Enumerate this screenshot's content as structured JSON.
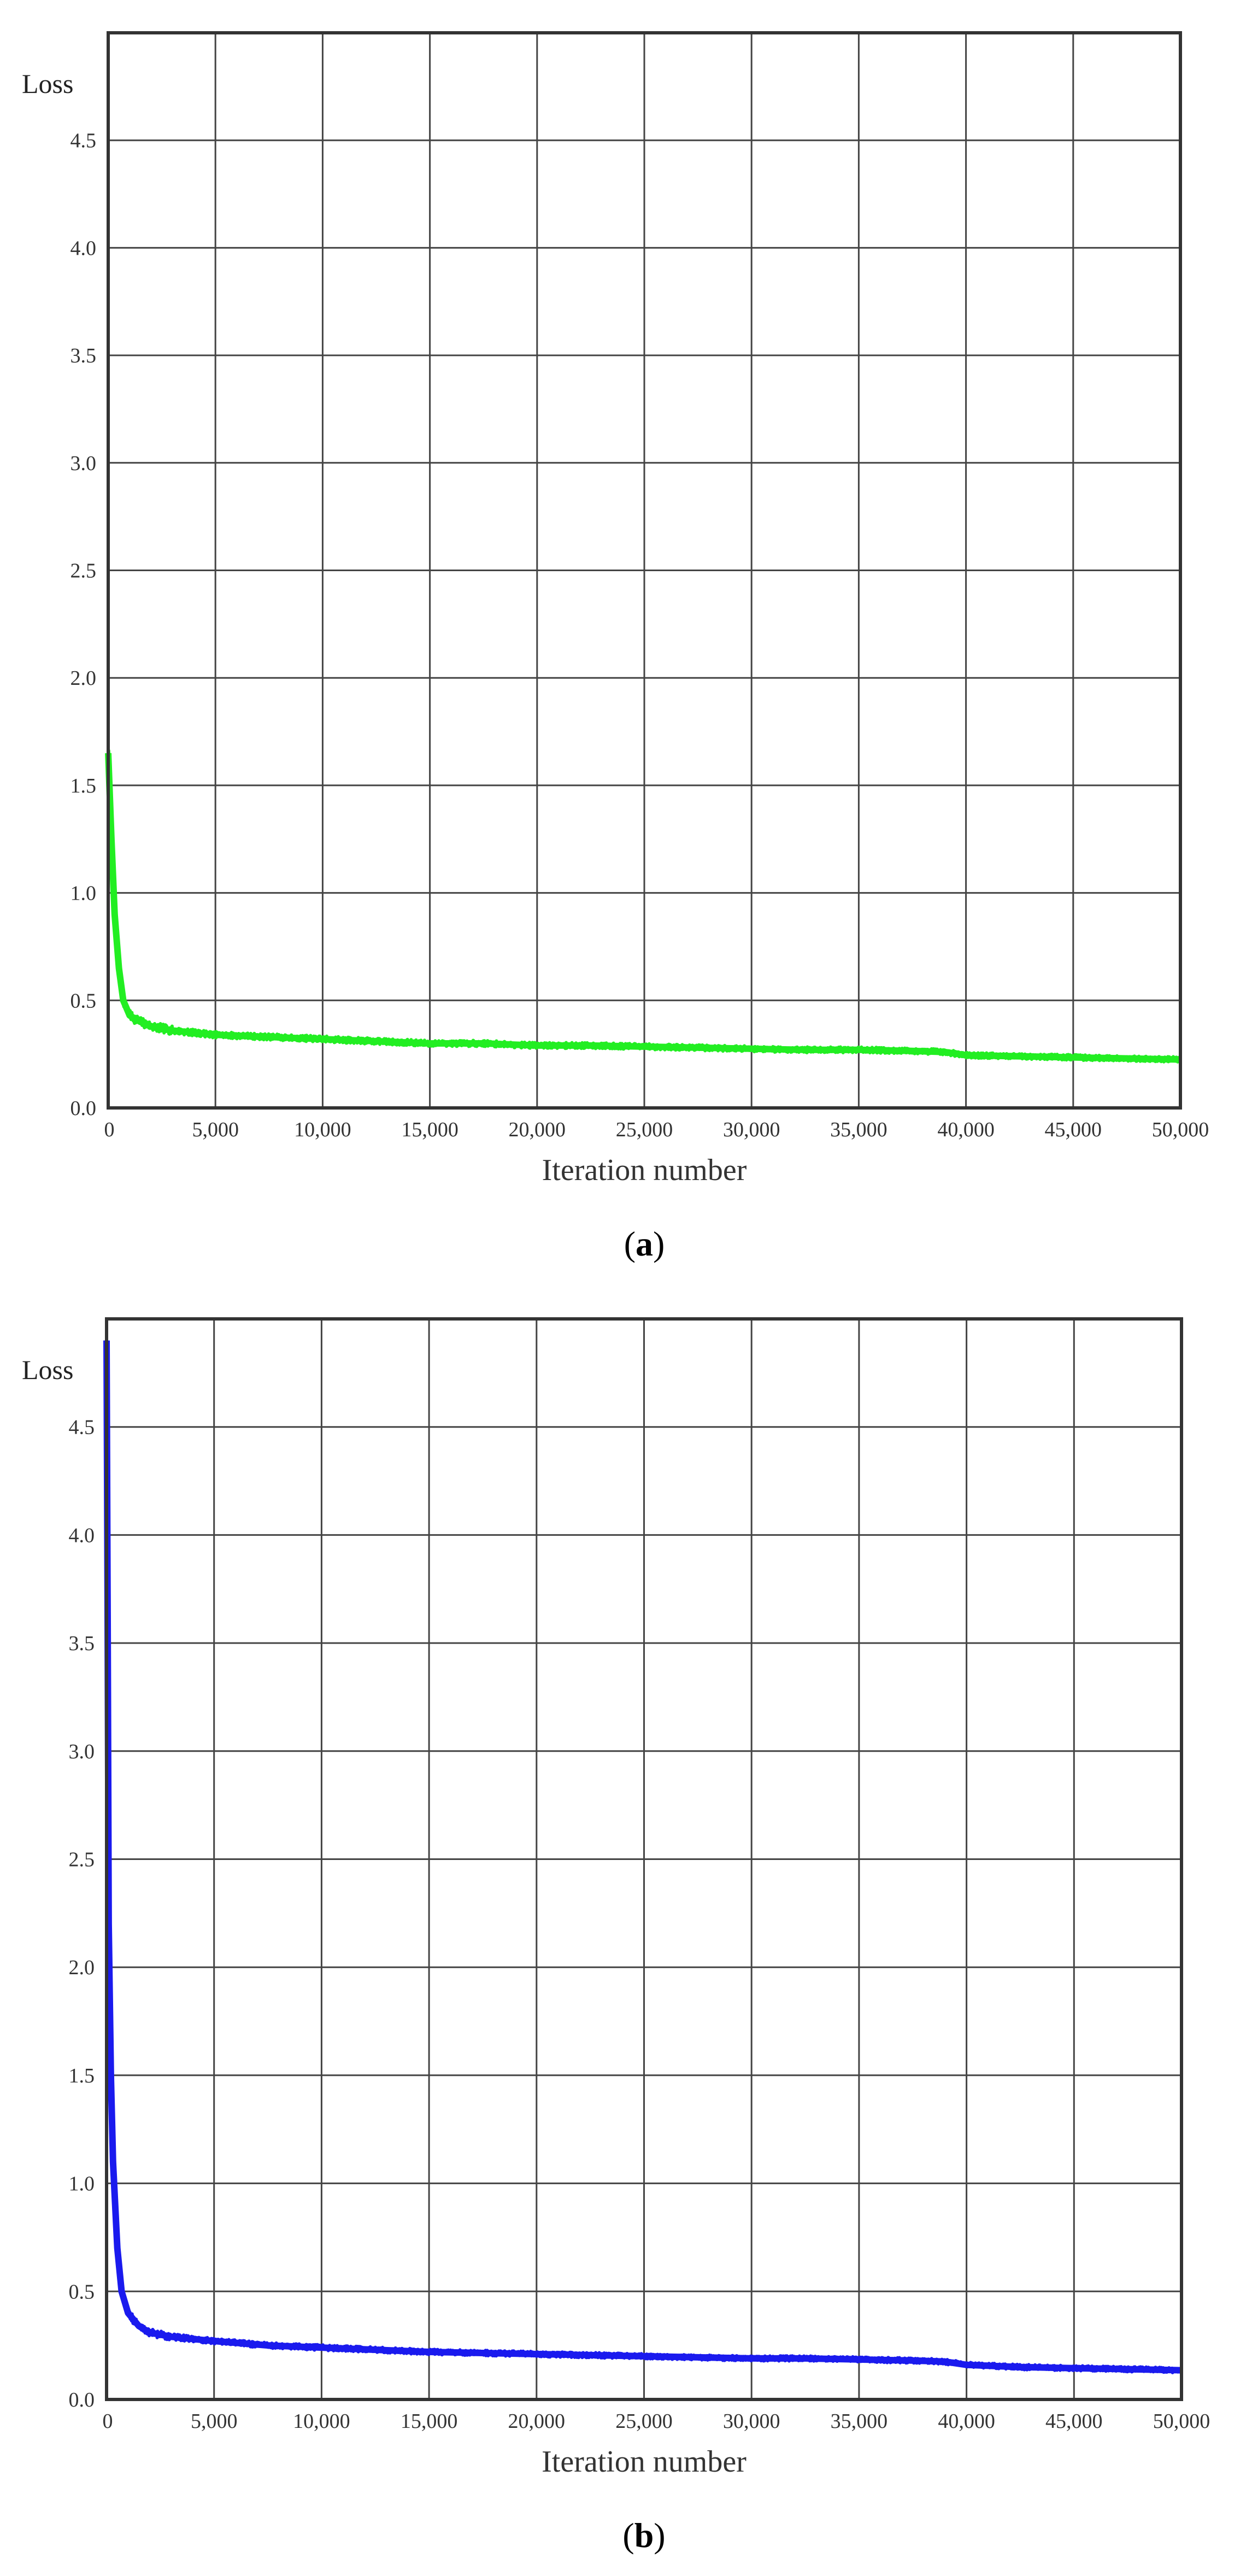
{
  "chart_data": [
    {
      "type": "line",
      "panel": "a",
      "caption_letter": "a",
      "ylabel": "Loss",
      "xlabel": "Iteration number",
      "xlim": [
        0,
        50000
      ],
      "ylim": [
        0,
        5
      ],
      "x_ticks": [
        0,
        5000,
        10000,
        15000,
        20000,
        25000,
        30000,
        35000,
        40000,
        45000,
        50000
      ],
      "x_tick_labels": [
        "0",
        "5,000",
        "10,000",
        "15,000",
        "20,000",
        "25,000",
        "30,000",
        "35,000",
        "40,000",
        "45,000",
        "50,000"
      ],
      "y_ticks": [
        0,
        0.5,
        1,
        1.5,
        2,
        2.5,
        3,
        3.5,
        4,
        4.5
      ],
      "y_tick_labels": [
        "0.0",
        "0.5",
        "1.0",
        "1.5",
        "2.0",
        "2.5",
        "3.0",
        "3.5",
        "4.0",
        "4.5"
      ],
      "grid": true,
      "color": "#22ee22",
      "series": [
        {
          "x": [
            0,
            150,
            300,
            500,
            700,
            1000,
            1500,
            2000,
            2500,
            3000,
            4000,
            5000,
            7500,
            10000,
            12500,
            15000,
            17500,
            20000,
            22500,
            25000,
            27500,
            30000,
            32500,
            35000,
            37500,
            39000,
            40000,
            42500,
            45000,
            47500,
            50000
          ],
          "values": [
            1.65,
            1.25,
            0.9,
            0.65,
            0.5,
            0.43,
            0.4,
            0.38,
            0.37,
            0.36,
            0.35,
            0.34,
            0.33,
            0.32,
            0.31,
            0.3,
            0.3,
            0.29,
            0.29,
            0.285,
            0.28,
            0.275,
            0.27,
            0.27,
            0.265,
            0.26,
            0.245,
            0.24,
            0.235,
            0.23,
            0.225
          ]
        }
      ]
    },
    {
      "type": "line",
      "panel": "b",
      "caption_letter": "b",
      "ylabel": "Loss",
      "xlabel": "Iteration number",
      "xlim": [
        0,
        50000
      ],
      "ylim": [
        0,
        5
      ],
      "x_ticks": [
        0,
        5000,
        10000,
        15000,
        20000,
        25000,
        30000,
        35000,
        40000,
        45000,
        50000
      ],
      "x_tick_labels": [
        "0",
        "5,000",
        "10,000",
        "15,000",
        "20,000",
        "25,000",
        "30,000",
        "35,000",
        "40,000",
        "45,000",
        "50,000"
      ],
      "y_ticks": [
        0,
        0.5,
        1,
        1.5,
        2,
        2.5,
        3,
        3.5,
        4,
        4.5
      ],
      "y_tick_labels": [
        "0.0",
        "0.5",
        "1.0",
        "1.5",
        "2.0",
        "2.5",
        "3.0",
        "3.5",
        "4.0",
        "4.5"
      ],
      "grid": true,
      "color": "#1a1aee",
      "series": [
        {
          "x": [
            0,
            50,
            100,
            200,
            300,
            500,
            700,
            1000,
            1500,
            2000,
            2500,
            3000,
            4000,
            5000,
            7500,
            10000,
            12500,
            15000,
            17500,
            20000,
            22500,
            25000,
            27500,
            30000,
            32500,
            35000,
            37500,
            39000,
            40000,
            42500,
            45000,
            47500,
            50000
          ],
          "values": [
            4.9,
            3.6,
            2.2,
            1.5,
            1.1,
            0.7,
            0.5,
            0.4,
            0.34,
            0.31,
            0.3,
            0.29,
            0.28,
            0.27,
            0.25,
            0.24,
            0.23,
            0.22,
            0.215,
            0.21,
            0.205,
            0.2,
            0.195,
            0.19,
            0.19,
            0.185,
            0.18,
            0.175,
            0.16,
            0.15,
            0.145,
            0.14,
            0.135
          ]
        }
      ]
    }
  ]
}
